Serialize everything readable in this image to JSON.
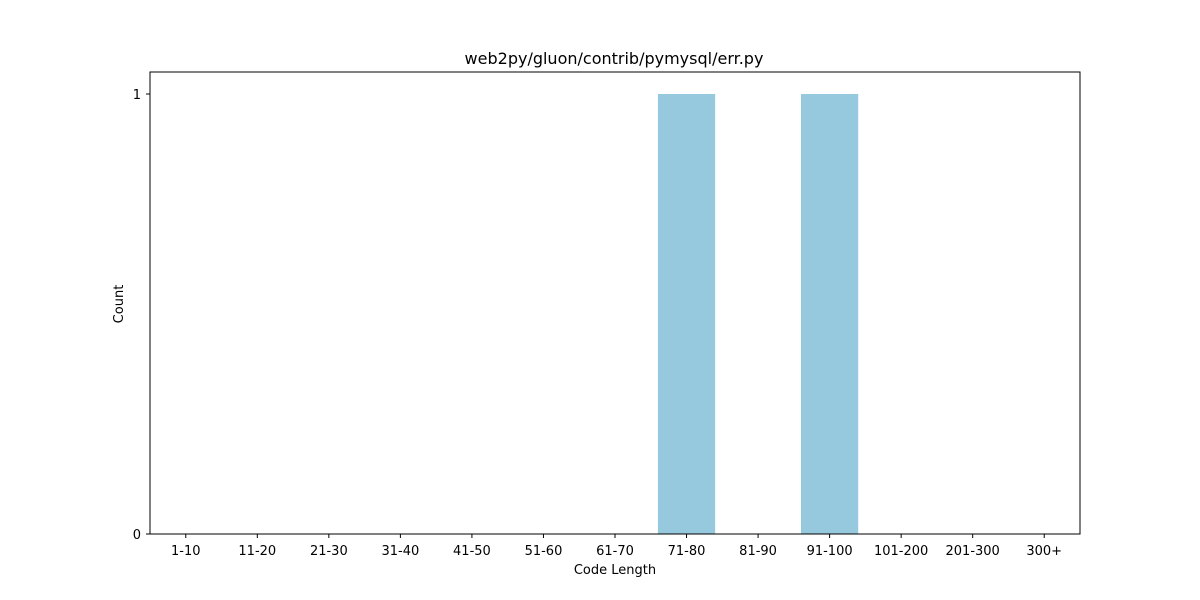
{
  "chart_data": {
    "type": "bar",
    "title": "web2py/gluon/contrib/pymysql/err.py",
    "xlabel": "Code Length",
    "ylabel": "Count",
    "categories": [
      "1-10",
      "11-20",
      "21-30",
      "31-40",
      "41-50",
      "51-60",
      "61-70",
      "71-80",
      "81-90",
      "91-100",
      "101-200",
      "201-300",
      "300+"
    ],
    "values": [
      0,
      0,
      0,
      0,
      0,
      0,
      0,
      1,
      0,
      1,
      0,
      0,
      0
    ],
    "ylim": [
      0,
      1.05
    ],
    "yticks": [
      0,
      1
    ],
    "bar_color": "#96c9dd",
    "grid": false,
    "legend": false
  }
}
